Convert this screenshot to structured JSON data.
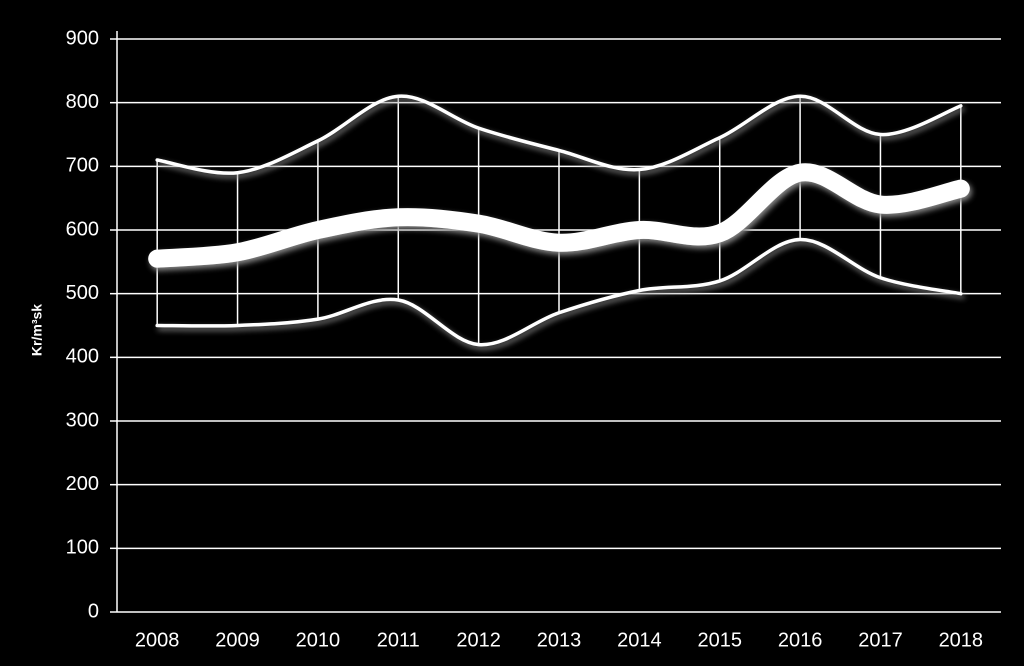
{
  "chart_data": {
    "type": "line",
    "ylabel": "Kr/m³sk",
    "categories": [
      "2008",
      "2009",
      "2010",
      "2011",
      "2012",
      "2013",
      "2014",
      "2015",
      "2016",
      "2017",
      "2018"
    ],
    "series": [
      {
        "color": "#ffffff",
        "values": [
          710,
          690,
          740,
          810,
          760,
          725,
          695,
          745,
          810,
          750,
          795
        ]
      },
      {
        "color": "#ffffff",
        "values": [
          555,
          565,
          600,
          620,
          610,
          580,
          600,
          595,
          690,
          640,
          665
        ]
      },
      {
        "color": "#ffffff",
        "values": [
          450,
          450,
          460,
          490,
          420,
          470,
          505,
          520,
          585,
          525,
          500
        ]
      }
    ],
    "ylim": [
      0,
      900
    ],
    "yticks": [
      0,
      100,
      200,
      300,
      400,
      500,
      600,
      700,
      800,
      900
    ],
    "grid": true
  }
}
